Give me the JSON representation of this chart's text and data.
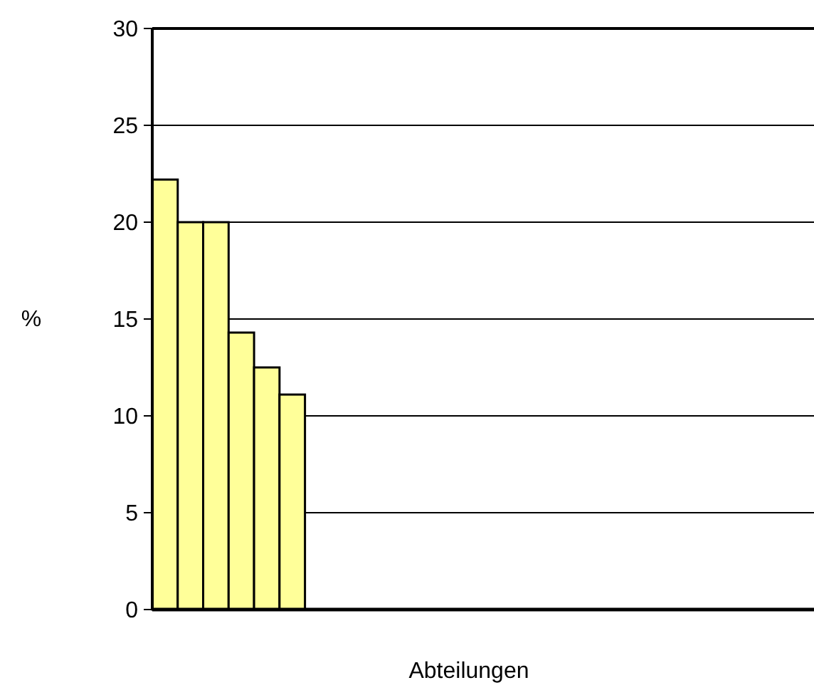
{
  "chart_data": {
    "type": "bar",
    "xlabel": "Abteilungen",
    "ylabel": "%",
    "categories": [
      null,
      null,
      null,
      null,
      null,
      null,
      null,
      null,
      null,
      null,
      null,
      null,
      null,
      null,
      null,
      null,
      null,
      null,
      null,
      null,
      null,
      null,
      null,
      null,
      null,
      null
    ],
    "values": [
      22.2,
      20,
      20,
      14.3,
      12.5,
      11.1,
      null,
      null,
      null,
      null,
      null,
      null,
      null,
      null,
      null,
      null,
      null,
      null,
      null,
      null,
      null,
      null,
      null,
      null,
      null,
      null
    ],
    "color": "#ffff99",
    "ylim": [
      0,
      30
    ],
    "yticks": [
      0,
      5,
      10,
      15,
      20,
      25,
      30
    ],
    "grid": "y"
  }
}
